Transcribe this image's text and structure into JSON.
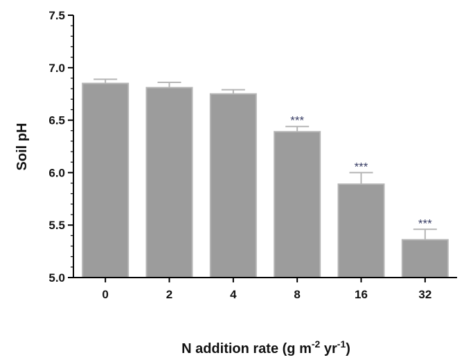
{
  "chart_data": {
    "type": "bar",
    "title": "",
    "xlabel": {
      "main": "N  addition rate (g m",
      "sup1": "-2",
      "mid": " yr",
      "sup2": "-1",
      "end": ")"
    },
    "ylabel": "Soil pH",
    "ylim": [
      5.0,
      7.5
    ],
    "yticks": [
      "5.0",
      "5.5",
      "6.0",
      "6.5",
      "7.0",
      "7.5"
    ],
    "categories": [
      "0",
      "2",
      "4",
      "8",
      "16",
      "32"
    ],
    "values": [
      6.85,
      6.81,
      6.75,
      6.39,
      5.89,
      5.36
    ],
    "errors": [
      0.04,
      0.05,
      0.04,
      0.05,
      0.11,
      0.1
    ],
    "significance": [
      "",
      "",
      "",
      "***",
      "***",
      "***"
    ],
    "grid": false,
    "colors": {
      "bar": "#9c9c9c",
      "bar_edge": "#b5b5b5",
      "axis": "#000000",
      "significance": "#3a3f66"
    }
  }
}
